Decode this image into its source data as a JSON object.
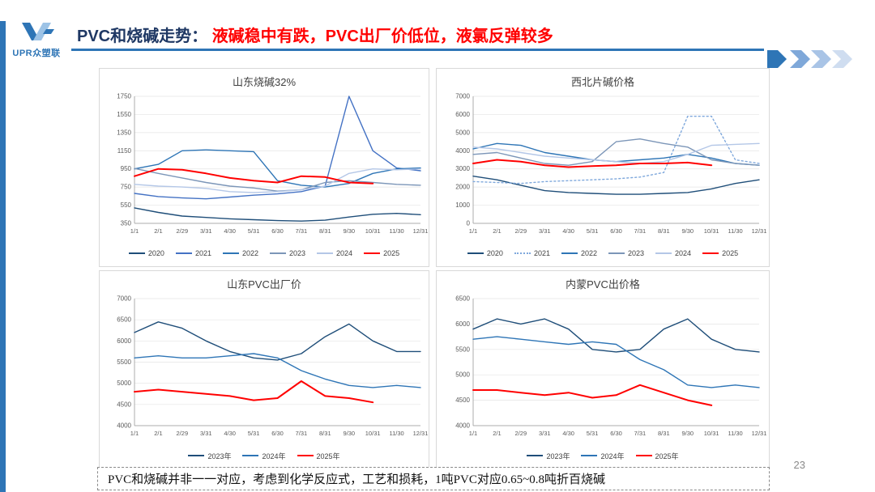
{
  "header": {
    "logo_text": "UPR众塑联",
    "title_prefix": "PVC和烧碱走势：",
    "title_emphasis": "液碱稳中有跌，PVC出厂价低位，液氯反弹较多",
    "accent_color": "#2E75B6"
  },
  "footer": {
    "note": "PVC和烧碱并非一一对应，考虑到化学反应式，工艺和损耗，1吨PVC对应0.65~0.8吨折百烧碱",
    "page_number": "23"
  },
  "chart_data": [
    {
      "type": "line",
      "title": "山东烧碱32%",
      "xlabel": "",
      "ylabel": "",
      "ylim": [
        350,
        1750
      ],
      "ystep": 200,
      "grid": true,
      "legend_position": "bottom",
      "categories": [
        "1/1",
        "2/1",
        "2/29",
        "3/31",
        "4/30",
        "5/31",
        "6/30",
        "7/31",
        "8/31",
        "9/30",
        "10/31",
        "11/30",
        "12/31"
      ],
      "series": [
        {
          "name": "2020",
          "color": "#1F4E79",
          "values": [
            520,
            470,
            430,
            415,
            400,
            390,
            380,
            375,
            385,
            420,
            450,
            460,
            445
          ]
        },
        {
          "name": "2021",
          "color": "#4472C4",
          "values": [
            680,
            645,
            630,
            620,
            640,
            660,
            675,
            700,
            760,
            1750,
            1150,
            960,
            930
          ]
        },
        {
          "name": "2022",
          "color": "#2E75B6",
          "values": [
            950,
            1000,
            1150,
            1160,
            1150,
            1140,
            820,
            770,
            750,
            790,
            900,
            950,
            960
          ]
        },
        {
          "name": "2023",
          "color": "#7C96B8",
          "values": [
            955,
            900,
            850,
            800,
            760,
            740,
            705,
            720,
            800,
            820,
            800,
            780,
            770
          ]
        },
        {
          "name": "2024",
          "color": "#B4C7E7",
          "values": [
            780,
            760,
            750,
            735,
            700,
            690,
            700,
            720,
            760,
            900,
            950,
            940,
            950
          ]
        },
        {
          "name": "2025",
          "color": "#FF0000",
          "width": 2,
          "values": [
            870,
            950,
            940,
            900,
            850,
            820,
            800,
            870,
            860,
            800,
            790,
            null,
            null
          ]
        }
      ]
    },
    {
      "type": "line",
      "title": "西北片碱价格",
      "xlabel": "",
      "ylabel": "",
      "ylim": [
        0,
        7000
      ],
      "ystep": 1000,
      "grid": true,
      "legend_position": "bottom",
      "categories": [
        "1/1",
        "2/1",
        "2/29",
        "3/31",
        "4/30",
        "5/31",
        "6/30",
        "7/31",
        "8/31",
        "9/30",
        "10/31",
        "11/30",
        "12/31"
      ],
      "series": [
        {
          "name": "2020",
          "color": "#1F4E79",
          "values": [
            2600,
            2400,
            2100,
            1800,
            1700,
            1650,
            1600,
            1600,
            1650,
            1700,
            1900,
            2200,
            2400
          ]
        },
        {
          "name": "2021",
          "color": "#7FA8DC",
          "dash": "2 3",
          "values": [
            2300,
            2250,
            2200,
            2300,
            2350,
            2400,
            2450,
            2550,
            2800,
            5900,
            5900,
            3500,
            3300
          ]
        },
        {
          "name": "2022",
          "color": "#2E75B6",
          "values": [
            4100,
            4400,
            4300,
            3900,
            3700,
            3500,
            3400,
            3500,
            3600,
            3800,
            3600,
            3300,
            3200
          ]
        },
        {
          "name": "2023",
          "color": "#7C96B8",
          "values": [
            3800,
            3900,
            3600,
            3300,
            3200,
            3400,
            4500,
            4650,
            4400,
            4200,
            3500,
            3300,
            3200
          ]
        },
        {
          "name": "2024",
          "color": "#B4C7E7",
          "values": [
            4200,
            4100,
            3900,
            3700,
            3600,
            3500,
            3400,
            3300,
            3400,
            3800,
            4300,
            4350,
            4400
          ]
        },
        {
          "name": "2025",
          "color": "#FF0000",
          "width": 2,
          "values": [
            3300,
            3500,
            3400,
            3200,
            3100,
            3150,
            3200,
            3300,
            3300,
            3350,
            3200,
            null,
            null
          ]
        }
      ]
    },
    {
      "type": "line",
      "title": "山东PVC出厂价",
      "xlabel": "",
      "ylabel": "",
      "ylim": [
        4000,
        7000
      ],
      "ystep": 500,
      "grid": true,
      "legend_position": "bottom",
      "categories": [
        "1/1",
        "2/1",
        "2/29",
        "3/31",
        "4/30",
        "5/31",
        "6/30",
        "7/31",
        "8/31",
        "9/30",
        "10/31",
        "11/30",
        "12/31"
      ],
      "series": [
        {
          "name": "2023年",
          "color": "#1F4E79",
          "values": [
            6200,
            6450,
            6300,
            6000,
            5750,
            5600,
            5550,
            5700,
            6100,
            6400,
            6000,
            5750,
            5750
          ]
        },
        {
          "name": "2024年",
          "color": "#2E75B6",
          "values": [
            5600,
            5650,
            5600,
            5600,
            5650,
            5700,
            5600,
            5300,
            5100,
            4950,
            4900,
            4950,
            4900
          ]
        },
        {
          "name": "2025年",
          "color": "#FF0000",
          "width": 2,
          "values": [
            4800,
            4850,
            4800,
            4750,
            4700,
            4600,
            4650,
            5050,
            4700,
            4650,
            4550,
            null,
            null
          ]
        }
      ]
    },
    {
      "type": "line",
      "title": "内蒙PVC出价格",
      "xlabel": "",
      "ylabel": "",
      "ylim": [
        4000,
        6500
      ],
      "ystep": 500,
      "grid": true,
      "legend_position": "bottom",
      "categories": [
        "1/1",
        "2/1",
        "2/29",
        "3/31",
        "4/30",
        "5/31",
        "6/30",
        "7/31",
        "8/31",
        "9/30",
        "10/31",
        "11/30",
        "12/31"
      ],
      "series": [
        {
          "name": "2023年",
          "color": "#1F4E79",
          "values": [
            5900,
            6100,
            6000,
            6100,
            5900,
            5500,
            5450,
            5500,
            5900,
            6100,
            5700,
            5500,
            5450
          ]
        },
        {
          "name": "2024年",
          "color": "#2E75B6",
          "values": [
            5700,
            5750,
            5700,
            5650,
            5600,
            5650,
            5600,
            5300,
            5100,
            4800,
            4750,
            4800,
            4750
          ]
        },
        {
          "name": "2025年",
          "color": "#FF0000",
          "width": 2,
          "values": [
            4700,
            4700,
            4650,
            4600,
            4650,
            4550,
            4600,
            4800,
            4650,
            4500,
            4400,
            null,
            null
          ]
        }
      ]
    }
  ]
}
